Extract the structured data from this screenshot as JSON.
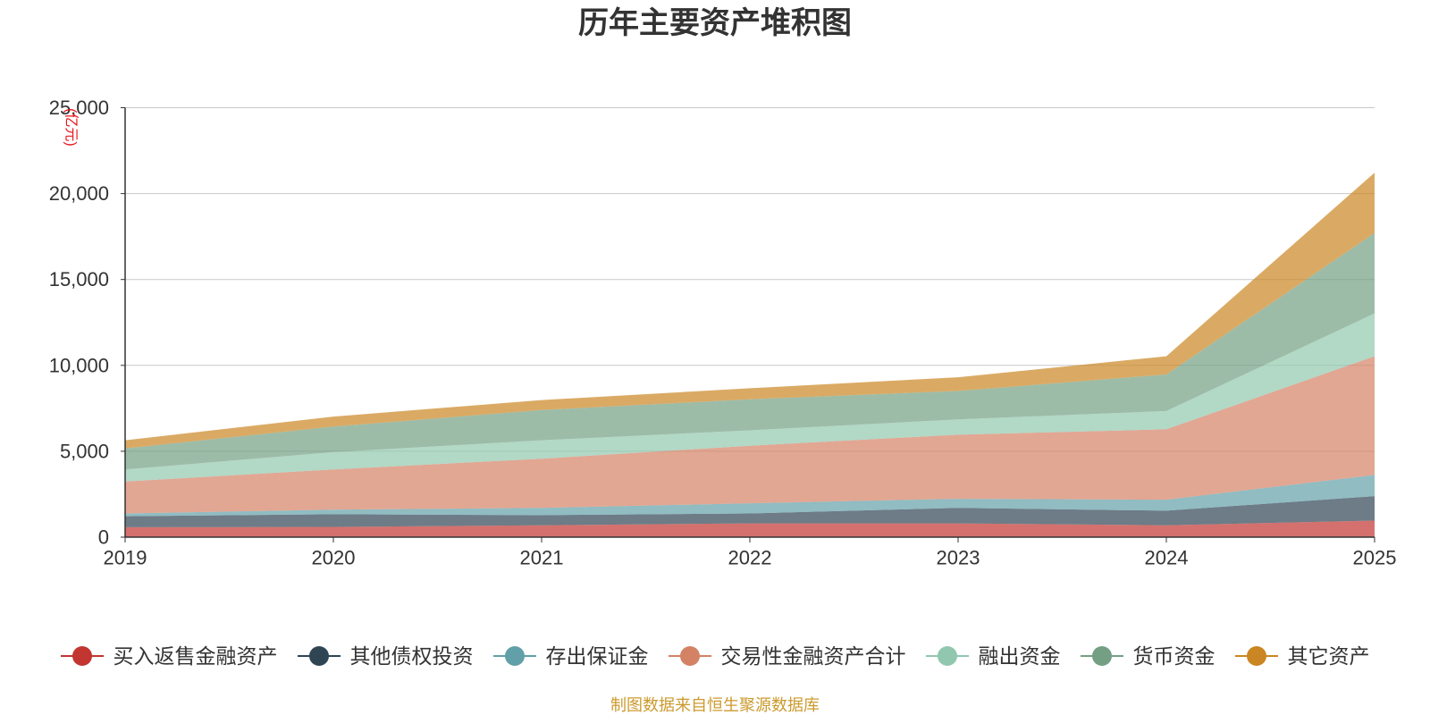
{
  "source_note": "制图数据来自恒生聚源数据库",
  "chart_data": {
    "type": "area",
    "stacked": true,
    "title": "历年主要资产堆积图",
    "xlabel": "",
    "ylabel": "(亿元)",
    "categories": [
      "2019",
      "2020",
      "2021",
      "2022",
      "2023",
      "2024",
      "2025"
    ],
    "ylim": [
      0,
      25000
    ],
    "yticks": [
      0,
      5000,
      10000,
      15000,
      20000,
      25000
    ],
    "ytick_labels": [
      "0",
      "5,000",
      "10,000",
      "15,000",
      "20,000",
      "25,000"
    ],
    "grid": true,
    "legend_position": "bottom",
    "series": [
      {
        "name": "买入返售金融资产",
        "color": "#c23531",
        "values": [
          580,
          600,
          690,
          800,
          800,
          690,
          960
        ]
      },
      {
        "name": "其他债权投资",
        "color": "#2f4554",
        "values": [
          640,
          730,
          590,
          580,
          900,
          850,
          1430
        ]
      },
      {
        "name": "存出保证金",
        "color": "#61a0a8",
        "values": [
          160,
          270,
          420,
          590,
          530,
          640,
          1230
        ]
      },
      {
        "name": "交易性金融资产合计",
        "color": "#d48265",
        "values": [
          1860,
          2340,
          2870,
          3350,
          3730,
          4100,
          6910
        ]
      },
      {
        "name": "融出资金",
        "color": "#91c7ae",
        "values": [
          700,
          1010,
          1070,
          900,
          900,
          1060,
          2500
        ]
      },
      {
        "name": "货币资金",
        "color": "#749f83",
        "values": [
          1220,
          1490,
          1760,
          1810,
          1650,
          2130,
          4680
        ]
      },
      {
        "name": "其它资产",
        "color": "#ca8622",
        "values": [
          480,
          580,
          580,
          640,
          800,
          1060,
          3510
        ]
      }
    ]
  }
}
